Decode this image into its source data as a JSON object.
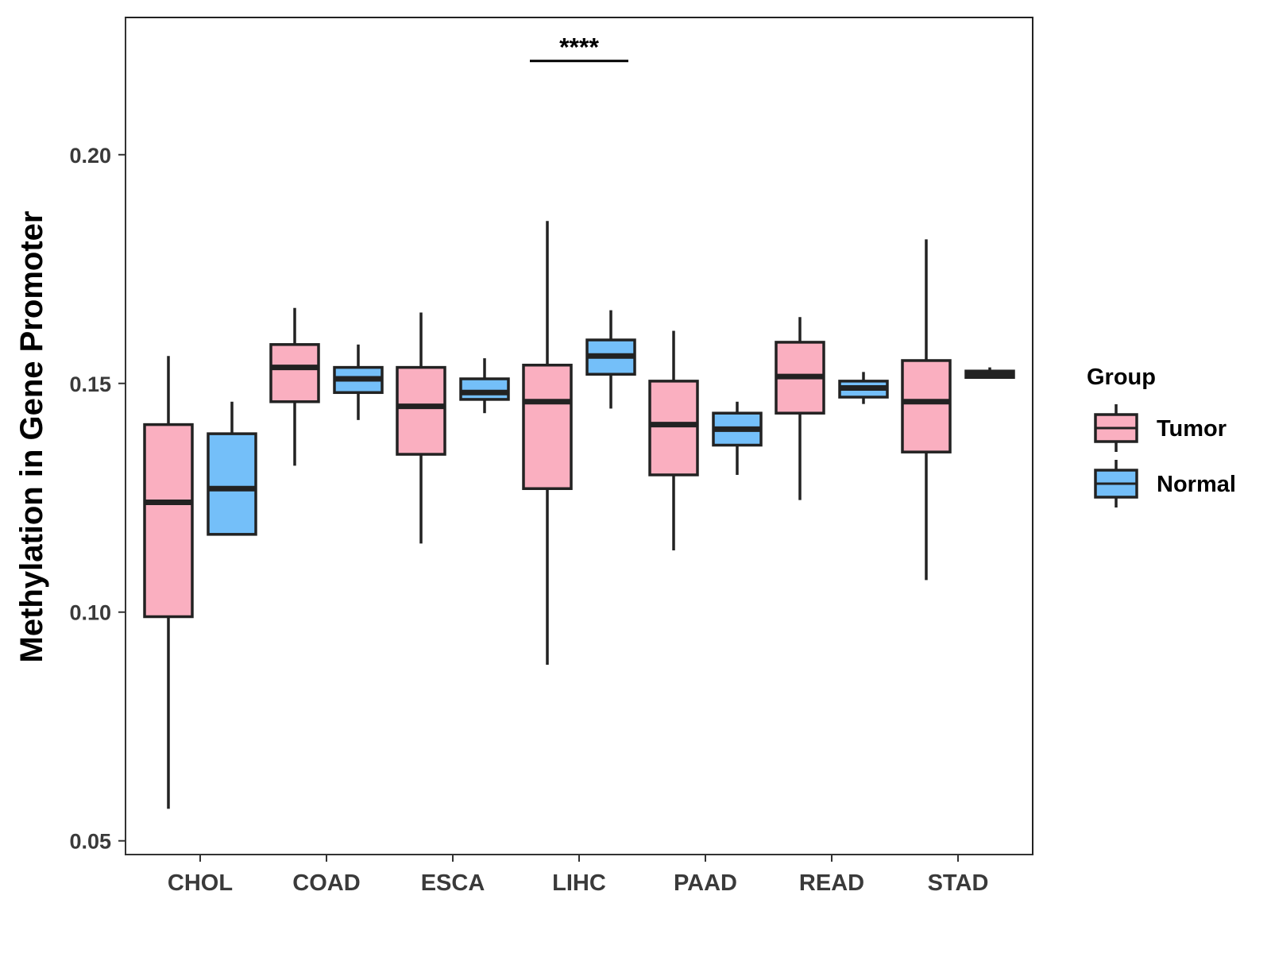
{
  "chart_data": {
    "type": "boxplot",
    "title": "",
    "xlabel": "",
    "ylabel": "Methylation in Gene Promoter",
    "ylim": [
      0.047,
      0.23
    ],
    "yticks": [
      0.05,
      0.1,
      0.15,
      0.2
    ],
    "ytick_labels": [
      "0.05",
      "0.10",
      "0.15",
      "0.20"
    ],
    "grid": false,
    "categories": [
      "CHOL",
      "COAD",
      "ESCA",
      "LIHC",
      "PAAD",
      "READ",
      "STAD"
    ],
    "legend": {
      "title": "Group",
      "position": "right",
      "entries": [
        {
          "name": "Tumor",
          "color": "#FAAFC0"
        },
        {
          "name": "Normal",
          "color": "#74BFF9"
        }
      ]
    },
    "series": [
      {
        "name": "Tumor",
        "color": "#FAAFC0",
        "boxes": [
          {
            "min": 0.057,
            "q1": 0.099,
            "median": 0.124,
            "q3": 0.141,
            "max": 0.156
          },
          {
            "min": 0.132,
            "q1": 0.146,
            "median": 0.1535,
            "q3": 0.1585,
            "max": 0.1665
          },
          {
            "min": 0.115,
            "q1": 0.1345,
            "median": 0.145,
            "q3": 0.1535,
            "max": 0.1655
          },
          {
            "min": 0.0885,
            "q1": 0.127,
            "median": 0.146,
            "q3": 0.154,
            "max": 0.1855
          },
          {
            "min": 0.1135,
            "q1": 0.13,
            "median": 0.141,
            "q3": 0.1505,
            "max": 0.1615
          },
          {
            "min": 0.1245,
            "q1": 0.1435,
            "median": 0.1515,
            "q3": 0.159,
            "max": 0.1645
          },
          {
            "min": 0.107,
            "q1": 0.135,
            "median": 0.146,
            "q3": 0.155,
            "max": 0.1815
          }
        ]
      },
      {
        "name": "Normal",
        "color": "#74BFF9",
        "boxes": [
          {
            "min": 0.117,
            "q1": 0.117,
            "median": 0.127,
            "q3": 0.139,
            "max": 0.146
          },
          {
            "min": 0.142,
            "q1": 0.148,
            "median": 0.151,
            "q3": 0.1535,
            "max": 0.1585
          },
          {
            "min": 0.1435,
            "q1": 0.1465,
            "median": 0.148,
            "q3": 0.151,
            "max": 0.1555
          },
          {
            "min": 0.1445,
            "q1": 0.152,
            "median": 0.156,
            "q3": 0.1595,
            "max": 0.166
          },
          {
            "min": 0.13,
            "q1": 0.1365,
            "median": 0.14,
            "q3": 0.1435,
            "max": 0.146
          },
          {
            "min": 0.1455,
            "q1": 0.147,
            "median": 0.149,
            "q3": 0.1505,
            "max": 0.1525
          },
          {
            "min": 0.151,
            "q1": 0.1513,
            "median": 0.152,
            "q3": 0.1527,
            "max": 0.1535
          }
        ]
      }
    ],
    "annotations": [
      {
        "category": "LIHC",
        "text": "****",
        "y": 0.2205
      }
    ]
  },
  "colors": {
    "tumor": "#FAAFC0",
    "normal": "#74BFF9",
    "stroke": "#222222",
    "axis": "#333333",
    "text": "#3a3a3a"
  }
}
